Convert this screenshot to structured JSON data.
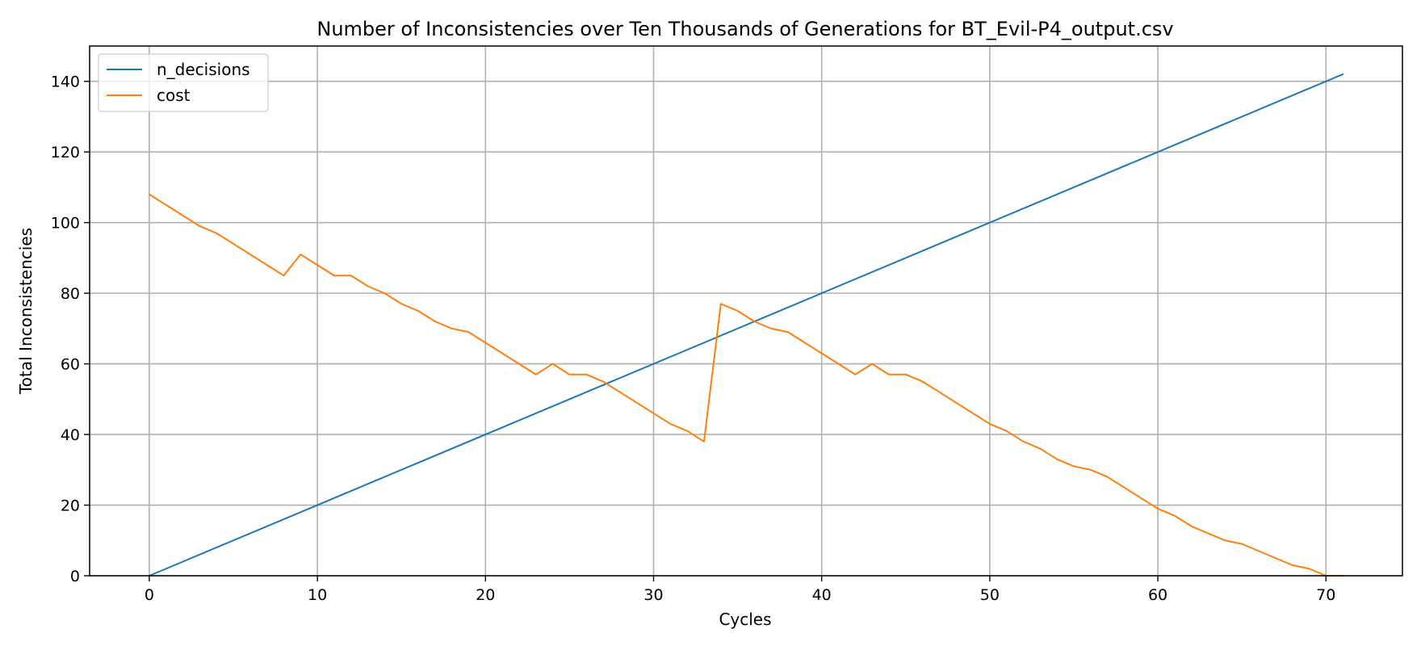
{
  "chart_data": {
    "type": "line",
    "title": "Number of Inconsistencies over Ten Thousands of Generations for BT_Evil-P4_output.csv",
    "xlabel": "Cycles",
    "ylabel": "Total Inconsistencies",
    "xlim": [
      -3.55,
      74.55
    ],
    "ylim": [
      0,
      150
    ],
    "xticks": [
      0,
      10,
      20,
      30,
      40,
      50,
      60,
      70
    ],
    "yticks": [
      0,
      20,
      40,
      60,
      80,
      100,
      120,
      140
    ],
    "grid": true,
    "legend_position": "upper-left",
    "series": [
      {
        "name": "n_decisions",
        "color": "#1f77b4",
        "x": [
          0,
          71
        ],
        "y": [
          0,
          142
        ]
      },
      {
        "name": "cost",
        "color": "#ff7f0e",
        "x": [
          0,
          1,
          2,
          3,
          4,
          5,
          6,
          7,
          8,
          9,
          10,
          11,
          12,
          13,
          14,
          15,
          16,
          17,
          18,
          19,
          20,
          21,
          22,
          23,
          24,
          25,
          26,
          27,
          28,
          29,
          30,
          31,
          32,
          33,
          34,
          35,
          36,
          37,
          38,
          39,
          40,
          41,
          42,
          43,
          44,
          45,
          46,
          47,
          48,
          49,
          50,
          51,
          52,
          53,
          54,
          55,
          56,
          57,
          58,
          59,
          60,
          61,
          62,
          63,
          64,
          65,
          66,
          67,
          68,
          69,
          70,
          71
        ],
        "y": [
          108,
          105,
          102,
          99,
          97,
          94,
          91,
          88,
          85,
          91,
          88,
          85,
          85,
          82,
          80,
          77,
          75,
          72,
          70,
          69,
          66,
          63,
          60,
          57,
          60,
          57,
          57,
          55,
          52,
          49,
          46,
          43,
          41,
          38,
          77,
          75,
          72,
          70,
          69,
          66,
          63,
          60,
          57,
          60,
          57,
          57,
          55,
          52,
          49,
          46,
          43,
          41,
          38,
          36,
          33,
          31,
          30,
          28,
          25,
          22,
          19,
          17,
          14,
          12,
          10,
          9,
          7,
          5,
          3,
          2,
          0,
          0
        ]
      }
    ]
  }
}
